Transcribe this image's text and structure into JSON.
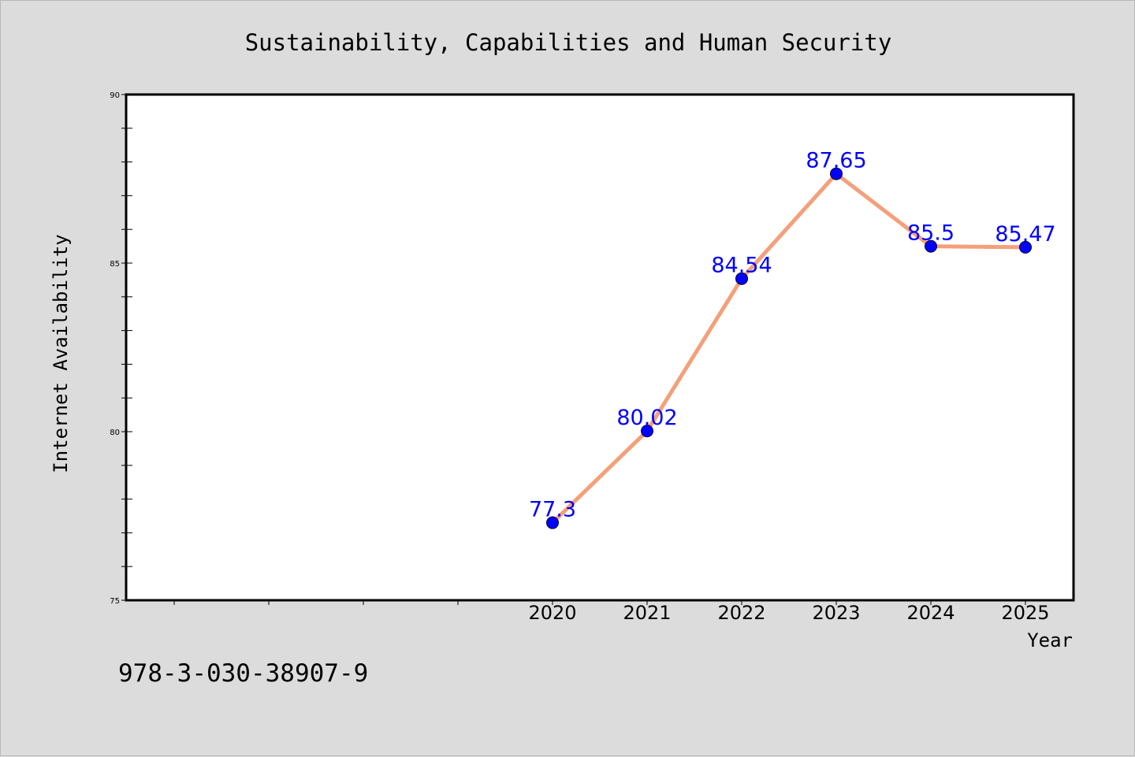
{
  "chart_data": {
    "type": "line",
    "title": "Sustainability, Capabilities and Human Security",
    "xlabel": "Year",
    "ylabel": "Internet Availability",
    "x": [
      "2020",
      "2021",
      "2022",
      "2023",
      "2024",
      "2025"
    ],
    "series": [
      {
        "values": [
          77.3,
          80.02,
          84.54,
          87.65,
          85.5,
          85.47
        ]
      }
    ],
    "data_labels": [
      "77.3",
      "80.02",
      "84.54",
      "87.65",
      "85.5",
      "85.47"
    ],
    "ylim": [
      75,
      90
    ],
    "y_ticks": [
      "75",
      "80",
      "85",
      "90"
    ],
    "grid": false,
    "line_color": "#f4a07a",
    "marker_color": "#0000ff",
    "label_color": "#0000ff",
    "background_color": "#dcdcdc",
    "plot_background_color": "#ffffff"
  },
  "footer": {
    "isbn": "978-3-030-38907-9"
  }
}
